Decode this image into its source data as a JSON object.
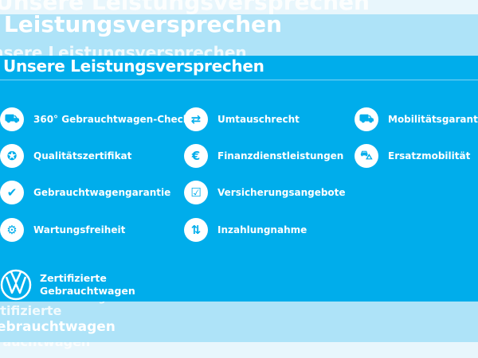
{
  "title": "Unsere Leistungsversprechen",
  "items": [
    {
      "label": "360° Gebrauchtwagen-Check",
      "icon": "car-check-icon",
      "glyph": "⛟"
    },
    {
      "label": "Qualitätszertifikat",
      "icon": "certificate-icon",
      "glyph": "✪"
    },
    {
      "label": "Gebrauchtwagengarantie",
      "icon": "shield-check-icon",
      "glyph": "✔"
    },
    {
      "label": "Wartungsfreiheit",
      "icon": "wrench-icon",
      "glyph": "⚙"
    },
    {
      "label": "Umtauschrecht",
      "icon": "exchange-icon",
      "glyph": "⇄"
    },
    {
      "label": "Finanzdienstleistungen",
      "icon": "coins-icon",
      "glyph": "€"
    },
    {
      "label": "Versicherungsangebote",
      "icon": "insurance-icon",
      "glyph": "☑"
    },
    {
      "label": "Inzahlungnahme",
      "icon": "trade-in-arrows-icon",
      "glyph": "⇅"
    },
    {
      "label": "Mobilitätsgarantie",
      "icon": "tow-truck-icon",
      "glyph": "⛟"
    },
    {
      "label": "Ersatzmobilität",
      "icon": "replacement-cars-icon",
      "glyph": "⛍"
    }
  ],
  "brand": {
    "line1": "Zertifizierte",
    "line2": "Gebrauchtwagen",
    "logo": "vw-logo"
  },
  "colors": {
    "main": "#00adeb",
    "light": "#aee3f8",
    "pale": "#e8f6fc"
  }
}
